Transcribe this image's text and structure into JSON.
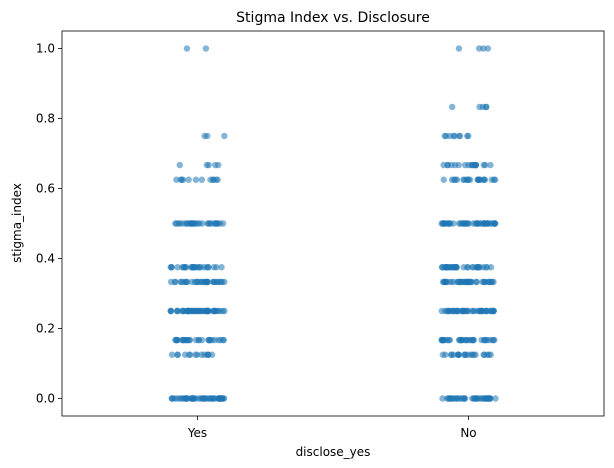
{
  "chart_data": {
    "type": "scatter",
    "subtype": "stripplot",
    "title": "Stigma Index vs. Disclosure",
    "xlabel": "disclose_yes",
    "ylabel": "stigma_index",
    "categories": [
      "Yes",
      "No"
    ],
    "ylim": [
      -0.05,
      1.05
    ],
    "yticks": [
      "0.0",
      "0.2",
      "0.4",
      "0.6",
      "0.8",
      "1.0"
    ],
    "grid": false,
    "legend": "none",
    "marker_color": "#1f77b4",
    "marker_alpha": 0.55,
    "jitter": 0.1,
    "series": [
      {
        "category": "Yes",
        "values": [
          1.0,
          1.0,
          0.75,
          0.75,
          0.75,
          0.667,
          0.667,
          0.667,
          0.667,
          0.667,
          0.625,
          0.625,
          0.625,
          0.625,
          0.625,
          0.625,
          0.625,
          0.625,
          0.625,
          0.625,
          0.625,
          0.625,
          0.5,
          0.5,
          0.5,
          0.5,
          0.5,
          0.5,
          0.5,
          0.5,
          0.5,
          0.5,
          0.5,
          0.5,
          0.5,
          0.5,
          0.5,
          0.5,
          0.5,
          0.5,
          0.5,
          0.5,
          0.5,
          0.5,
          0.5,
          0.5,
          0.5,
          0.5,
          0.5,
          0.5,
          0.5,
          0.5,
          0.375,
          0.375,
          0.375,
          0.375,
          0.375,
          0.375,
          0.375,
          0.375,
          0.375,
          0.375,
          0.375,
          0.375,
          0.375,
          0.375,
          0.375,
          0.375,
          0.375,
          0.375,
          0.375,
          0.375,
          0.375,
          0.375,
          0.375,
          0.375,
          0.375,
          0.375,
          0.333,
          0.333,
          0.333,
          0.333,
          0.333,
          0.333,
          0.333,
          0.333,
          0.333,
          0.333,
          0.333,
          0.333,
          0.333,
          0.333,
          0.333,
          0.333,
          0.333,
          0.333,
          0.333,
          0.333,
          0.333,
          0.333,
          0.333,
          0.333,
          0.333,
          0.333,
          0.333,
          0.333,
          0.333,
          0.333,
          0.333,
          0.333,
          0.25,
          0.25,
          0.25,
          0.25,
          0.25,
          0.25,
          0.25,
          0.25,
          0.25,
          0.25,
          0.25,
          0.25,
          0.25,
          0.25,
          0.25,
          0.25,
          0.25,
          0.25,
          0.25,
          0.25,
          0.25,
          0.25,
          0.25,
          0.25,
          0.25,
          0.25,
          0.25,
          0.25,
          0.25,
          0.25,
          0.25,
          0.25,
          0.25,
          0.25,
          0.25,
          0.25,
          0.25,
          0.25,
          0.25,
          0.25,
          0.25,
          0.25,
          0.25,
          0.25,
          0.25,
          0.25,
          0.25,
          0.25,
          0.25,
          0.25,
          0.167,
          0.167,
          0.167,
          0.167,
          0.167,
          0.167,
          0.167,
          0.167,
          0.167,
          0.167,
          0.167,
          0.167,
          0.167,
          0.167,
          0.167,
          0.167,
          0.167,
          0.167,
          0.167,
          0.167,
          0.167,
          0.167,
          0.167,
          0.167,
          0.167,
          0.167,
          0.167,
          0.167,
          0.125,
          0.125,
          0.125,
          0.125,
          0.125,
          0.125,
          0.125,
          0.125,
          0.125,
          0.125,
          0.125,
          0.125,
          0.125,
          0.125,
          0.0,
          0.0,
          0.0,
          0.0,
          0.0,
          0.0,
          0.0,
          0.0,
          0.0,
          0.0,
          0.0,
          0.0,
          0.0,
          0.0,
          0.0,
          0.0,
          0.0,
          0.0,
          0.0,
          0.0,
          0.0,
          0.0,
          0.0,
          0.0,
          0.0,
          0.0,
          0.0,
          0.0,
          0.0,
          0.0,
          0.0,
          0.0,
          0.0,
          0.0,
          0.0,
          0.0,
          0.0,
          0.0,
          0.0,
          0.0,
          0.0,
          0.0,
          0.0,
          0.0,
          0.0,
          0.0,
          0.0,
          0.0,
          0.0,
          0.0
        ]
      },
      {
        "category": "No",
        "values": [
          1.0,
          1.0,
          1.0,
          1.0,
          0.833,
          0.833,
          0.833,
          0.833,
          0.833,
          0.75,
          0.75,
          0.75,
          0.75,
          0.75,
          0.75,
          0.75,
          0.75,
          0.75,
          0.667,
          0.667,
          0.667,
          0.667,
          0.667,
          0.667,
          0.667,
          0.667,
          0.667,
          0.667,
          0.667,
          0.667,
          0.667,
          0.667,
          0.667,
          0.667,
          0.667,
          0.667,
          0.625,
          0.625,
          0.625,
          0.625,
          0.625,
          0.625,
          0.625,
          0.625,
          0.625,
          0.625,
          0.625,
          0.625,
          0.625,
          0.625,
          0.625,
          0.625,
          0.625,
          0.625,
          0.625,
          0.625,
          0.625,
          0.625,
          0.5,
          0.5,
          0.5,
          0.5,
          0.5,
          0.5,
          0.5,
          0.5,
          0.5,
          0.5,
          0.5,
          0.5,
          0.5,
          0.5,
          0.5,
          0.5,
          0.5,
          0.5,
          0.5,
          0.5,
          0.5,
          0.5,
          0.5,
          0.5,
          0.5,
          0.5,
          0.5,
          0.5,
          0.5,
          0.5,
          0.5,
          0.5,
          0.5,
          0.5,
          0.5,
          0.5,
          0.5,
          0.5,
          0.5,
          0.5,
          0.5,
          0.5,
          0.5,
          0.5,
          0.5,
          0.5,
          0.375,
          0.375,
          0.375,
          0.375,
          0.375,
          0.375,
          0.375,
          0.375,
          0.375,
          0.375,
          0.375,
          0.375,
          0.375,
          0.375,
          0.375,
          0.375,
          0.375,
          0.375,
          0.375,
          0.375,
          0.375,
          0.375,
          0.375,
          0.375,
          0.375,
          0.375,
          0.375,
          0.375,
          0.375,
          0.375,
          0.375,
          0.375,
          0.375,
          0.375,
          0.333,
          0.333,
          0.333,
          0.333,
          0.333,
          0.333,
          0.333,
          0.333,
          0.333,
          0.333,
          0.333,
          0.333,
          0.333,
          0.333,
          0.333,
          0.333,
          0.333,
          0.333,
          0.333,
          0.333,
          0.333,
          0.333,
          0.333,
          0.333,
          0.333,
          0.333,
          0.333,
          0.333,
          0.333,
          0.333,
          0.333,
          0.333,
          0.333,
          0.333,
          0.333,
          0.333,
          0.333,
          0.333,
          0.333,
          0.333,
          0.25,
          0.25,
          0.25,
          0.25,
          0.25,
          0.25,
          0.25,
          0.25,
          0.25,
          0.25,
          0.25,
          0.25,
          0.25,
          0.25,
          0.25,
          0.25,
          0.25,
          0.25,
          0.25,
          0.25,
          0.25,
          0.25,
          0.25,
          0.25,
          0.25,
          0.25,
          0.25,
          0.25,
          0.25,
          0.25,
          0.25,
          0.25,
          0.25,
          0.25,
          0.25,
          0.25,
          0.25,
          0.25,
          0.25,
          0.25,
          0.25,
          0.25,
          0.25,
          0.25,
          0.25,
          0.25,
          0.167,
          0.167,
          0.167,
          0.167,
          0.167,
          0.167,
          0.167,
          0.167,
          0.167,
          0.167,
          0.167,
          0.167,
          0.167,
          0.167,
          0.167,
          0.167,
          0.167,
          0.167,
          0.167,
          0.167,
          0.167,
          0.167,
          0.167,
          0.167,
          0.167,
          0.167,
          0.167,
          0.167,
          0.167,
          0.167,
          0.167,
          0.167,
          0.167,
          0.167,
          0.125,
          0.125,
          0.125,
          0.125,
          0.125,
          0.125,
          0.125,
          0.125,
          0.125,
          0.125,
          0.125,
          0.125,
          0.125,
          0.125,
          0.125,
          0.125,
          0.125,
          0.125,
          0.125,
          0.125,
          0.125,
          0.125,
          0.0,
          0.0,
          0.0,
          0.0,
          0.0,
          0.0,
          0.0,
          0.0,
          0.0,
          0.0,
          0.0,
          0.0,
          0.0,
          0.0,
          0.0,
          0.0,
          0.0,
          0.0,
          0.0,
          0.0,
          0.0,
          0.0,
          0.0,
          0.0,
          0.0,
          0.0,
          0.0,
          0.0,
          0.0,
          0.0,
          0.0,
          0.0,
          0.0,
          0.0,
          0.0,
          0.0,
          0.0,
          0.0,
          0.0,
          0.0
        ]
      }
    ]
  }
}
